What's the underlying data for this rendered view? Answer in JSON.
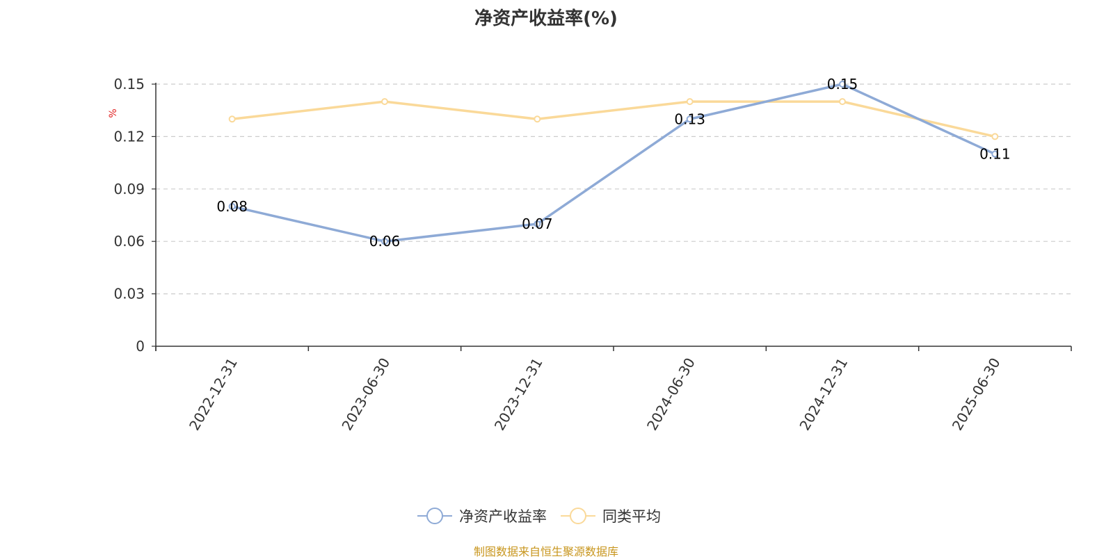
{
  "chart_data": {
    "type": "line",
    "title": "净资产收益率(%)",
    "ylabel": "%",
    "xlabel": "",
    "categories": [
      "2022-12-31",
      "2023-06-30",
      "2023-12-31",
      "2024-06-30",
      "2024-12-31",
      "2025-06-30"
    ],
    "series": [
      {
        "name": "净资产收益率",
        "values": [
          0.08,
          0.06,
          0.07,
          0.13,
          0.15,
          0.11
        ],
        "color": "#8eaad6",
        "show_labels": true
      },
      {
        "name": "同类平均",
        "values": [
          0.13,
          0.14,
          0.13,
          0.14,
          0.14,
          0.12
        ],
        "color": "#fad999",
        "show_labels": false
      }
    ],
    "ylim": [
      0,
      0.15
    ],
    "yticks": [
      "0",
      "0.03",
      "0.06",
      "0.09",
      "0.12",
      "0.15"
    ],
    "grid": true,
    "legend_position": "bottom-center"
  },
  "source_note": "制图数据来自恒生聚源数据库"
}
